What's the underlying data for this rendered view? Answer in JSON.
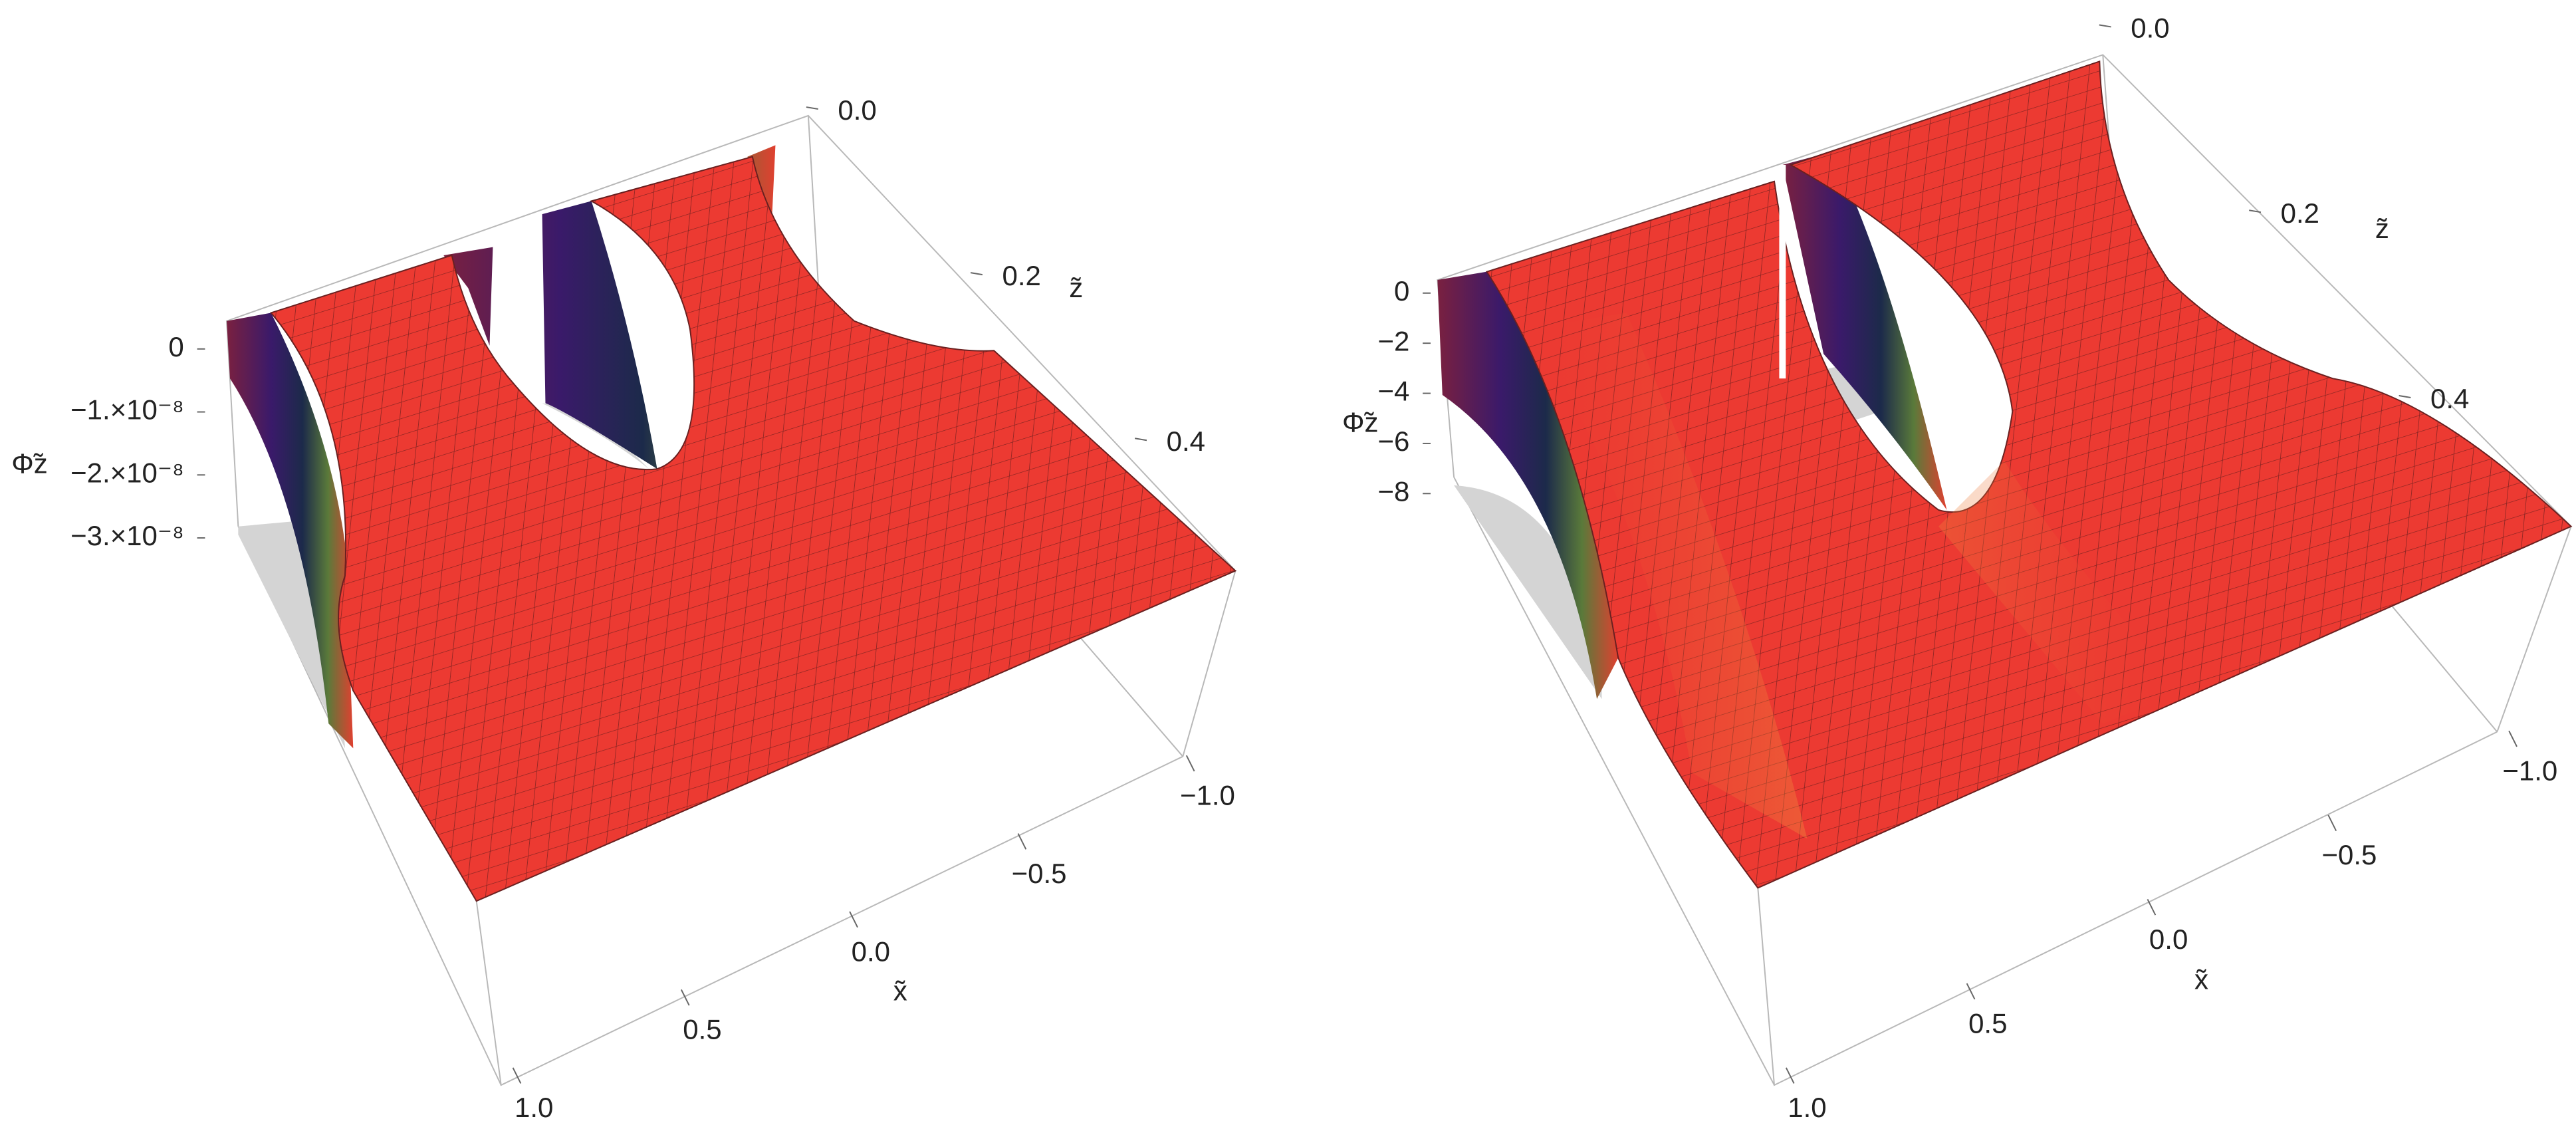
{
  "chart_data": [
    {
      "type": "surface",
      "zlabel": "Φ̃z",
      "xlabel": "x̃",
      "ylabel": "z̃",
      "zlim": [
        -3e-08,
        0
      ],
      "zticks": [
        0,
        {
          "value": -1e-08,
          "label": "−1.×10⁻⁸"
        },
        {
          "value": -2e-08,
          "label": "−2.×10⁻⁸"
        },
        {
          "value": -3e-08,
          "label": "−3.×10⁻⁸"
        }
      ],
      "xlim": [
        -1,
        1
      ],
      "xticks": [
        {
          "value": 1,
          "label": "1.0"
        },
        {
          "value": 0.5,
          "label": "0.5"
        },
        {
          "value": 0,
          "label": "0.0"
        },
        {
          "value": -0.5,
          "label": "−0.5"
        },
        {
          "value": -1,
          "label": "−1.0"
        }
      ],
      "ylim": [
        0,
        0.5
      ],
      "yticks": [
        {
          "value": 0,
          "label": "0.0"
        },
        {
          "value": 0.2,
          "label": "0.2"
        },
        {
          "value": 0.4,
          "label": "0.4"
        }
      ]
    },
    {
      "type": "surface",
      "zlabel": "Φ̃z",
      "xlabel": "x̃",
      "ylabel": "z̃",
      "zlim": [
        -8,
        0
      ],
      "zticks": [
        0,
        {
          "value": -2,
          "label": "−2"
        },
        {
          "value": -4,
          "label": "−4"
        },
        {
          "value": -6,
          "label": "−6"
        },
        {
          "value": -8,
          "label": "−8"
        }
      ],
      "xlim": [
        -1,
        1
      ],
      "xticks": [
        {
          "value": 1,
          "label": "1.0"
        },
        {
          "value": 0.5,
          "label": "0.5"
        },
        {
          "value": 0,
          "label": "0.0"
        },
        {
          "value": -0.5,
          "label": "−0.5"
        },
        {
          "value": -1,
          "label": "−1.0"
        }
      ],
      "ylim": [
        0,
        0.5
      ],
      "yticks": [
        {
          "value": 0,
          "label": "0.0"
        },
        {
          "value": 0.2,
          "label": "0.2"
        },
        {
          "value": 0.4,
          "label": "0.4"
        }
      ]
    }
  ]
}
